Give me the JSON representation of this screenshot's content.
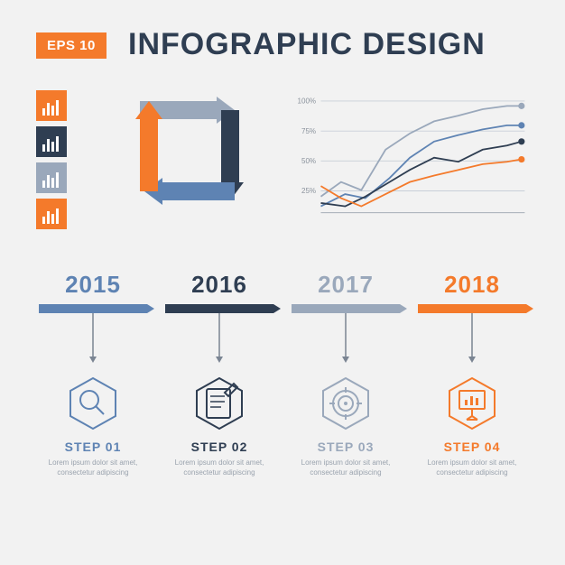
{
  "badge": {
    "text": "EPS 10",
    "bg": "#f47a2b",
    "fg": "#ffffff"
  },
  "title": {
    "text": "INFOGRAPHIC DESIGN",
    "color": "#2f3e52"
  },
  "background": "#f2f2f2",
  "icon_stack": [
    {
      "bg": "#f47a2b",
      "fg": "#ffffff"
    },
    {
      "bg": "#2f3e52",
      "fg": "#ffffff"
    },
    {
      "bg": "#9aa8bb",
      "fg": "#ffffff"
    },
    {
      "bg": "#f47a2b",
      "fg": "#ffffff"
    }
  ],
  "cycle": {
    "colors": {
      "top": "#9aa8bb",
      "right": "#2f3e52",
      "bottom": "#5e83b3",
      "left": "#f47a2b"
    }
  },
  "chart": {
    "ylabels": [
      "100%",
      "75%",
      "50%",
      "25%"
    ],
    "ytick_y": [
      0,
      37,
      74,
      111
    ],
    "grid_color": "#c8cfd8",
    "axis_color": "#9aa3ae",
    "label_color": "#8a929c",
    "label_fontsize": 9,
    "series": [
      {
        "color": "#9aa8bb",
        "dot": "#9aa8bb",
        "points": [
          [
            0,
            118
          ],
          [
            25,
            100
          ],
          [
            50,
            110
          ],
          [
            80,
            60
          ],
          [
            110,
            40
          ],
          [
            140,
            25
          ],
          [
            170,
            18
          ],
          [
            200,
            10
          ],
          [
            230,
            6
          ],
          [
            248,
            6
          ]
        ]
      },
      {
        "color": "#5e83b3",
        "dot": "#5e83b3",
        "points": [
          [
            0,
            130
          ],
          [
            30,
            115
          ],
          [
            55,
            120
          ],
          [
            85,
            95
          ],
          [
            110,
            70
          ],
          [
            140,
            50
          ],
          [
            170,
            42
          ],
          [
            200,
            35
          ],
          [
            230,
            30
          ],
          [
            248,
            30
          ]
        ]
      },
      {
        "color": "#2f3e52",
        "dot": "#2f3e52",
        "points": [
          [
            0,
            126
          ],
          [
            30,
            130
          ],
          [
            55,
            118
          ],
          [
            85,
            100
          ],
          [
            110,
            85
          ],
          [
            140,
            70
          ],
          [
            170,
            75
          ],
          [
            200,
            60
          ],
          [
            230,
            55
          ],
          [
            248,
            50
          ]
        ]
      },
      {
        "color": "#f47a2b",
        "dot": "#f47a2b",
        "points": [
          [
            0,
            105
          ],
          [
            25,
            120
          ],
          [
            50,
            130
          ],
          [
            80,
            115
          ],
          [
            110,
            100
          ],
          [
            140,
            92
          ],
          [
            170,
            85
          ],
          [
            200,
            78
          ],
          [
            230,
            75
          ],
          [
            248,
            72
          ]
        ]
      }
    ]
  },
  "timeline": {
    "drop_stroke": "#7b8593",
    "steps": [
      {
        "year": "2015",
        "color": "#5e83b3",
        "icon": "search",
        "title": "STEP 01",
        "body": "Lorem ipsum dolor sit amet, consectetur adipiscing"
      },
      {
        "year": "2016",
        "color": "#2f3e52",
        "icon": "edit",
        "title": "STEP 02",
        "body": "Lorem ipsum dolor sit amet, consectetur adipiscing"
      },
      {
        "year": "2017",
        "color": "#9aa8bb",
        "icon": "target",
        "title": "STEP 03",
        "body": "Lorem ipsum dolor sit amet, consectetur adipiscing"
      },
      {
        "year": "2018",
        "color": "#f47a2b",
        "icon": "present",
        "title": "STEP 04",
        "body": "Lorem ipsum dolor sit amet, consectetur adipiscing"
      }
    ]
  }
}
